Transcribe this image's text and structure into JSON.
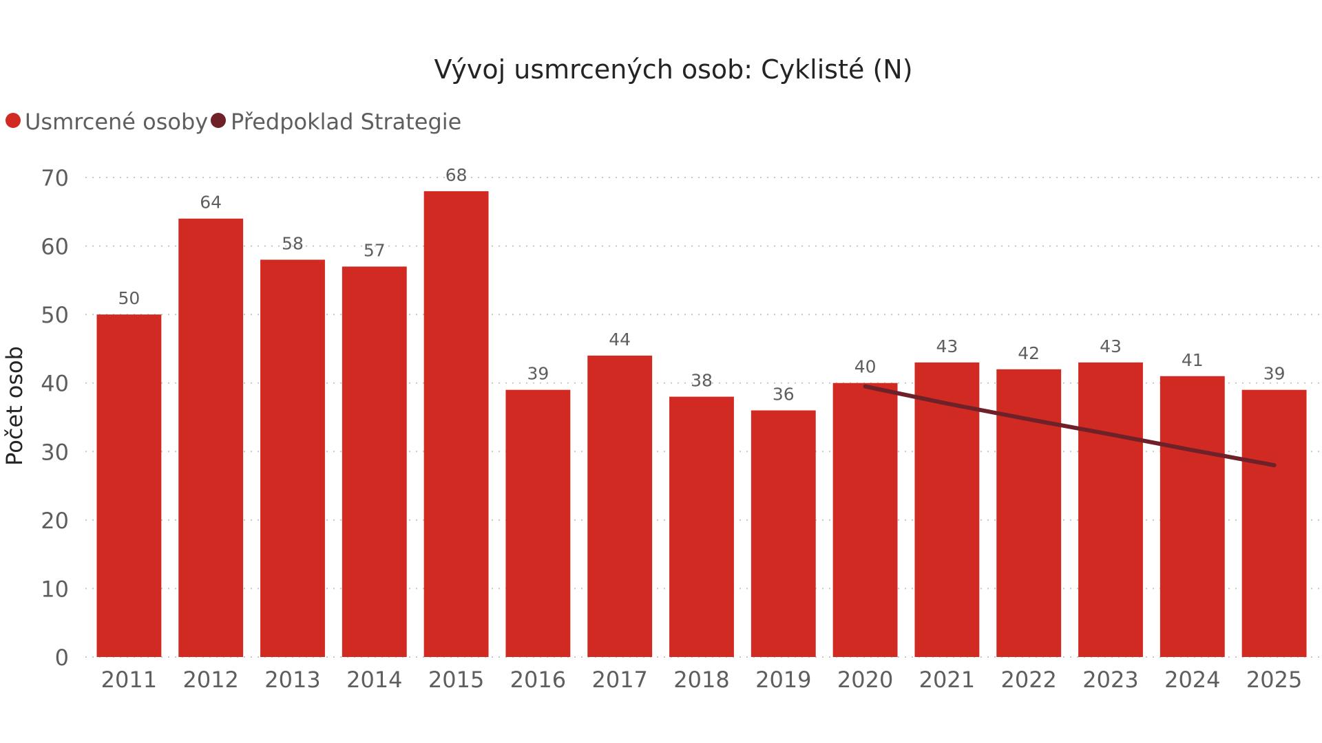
{
  "chart_data": {
    "type": "bar",
    "title": "Vývoj usmrcených osob: Cyklisté (N)",
    "ylabel": "Počet osob",
    "xlabel": "",
    "ylim": [
      0,
      70
    ],
    "yticks": [
      0,
      10,
      20,
      30,
      40,
      50,
      60,
      70
    ],
    "grid": true,
    "legend_position": "top-left",
    "categories": [
      "2011",
      "2012",
      "2013",
      "2014",
      "2015",
      "2016",
      "2017",
      "2018",
      "2019",
      "2020",
      "2021",
      "2022",
      "2023",
      "2024",
      "2025"
    ],
    "series": [
      {
        "name": "Usmrcené osoby",
        "type": "bar",
        "color": "#d12a23",
        "values": [
          50,
          64,
          58,
          57,
          68,
          39,
          44,
          38,
          36,
          40,
          43,
          42,
          43,
          41,
          39
        ]
      },
      {
        "name": "Předpoklad Strategie",
        "type": "line",
        "color": "#6e2128",
        "x": [
          "2020",
          "2021",
          "2022",
          "2023",
          "2024",
          "2025"
        ],
        "values": [
          39.5,
          37.0,
          34.7,
          32.5,
          30.2,
          28.0
        ]
      }
    ]
  }
}
